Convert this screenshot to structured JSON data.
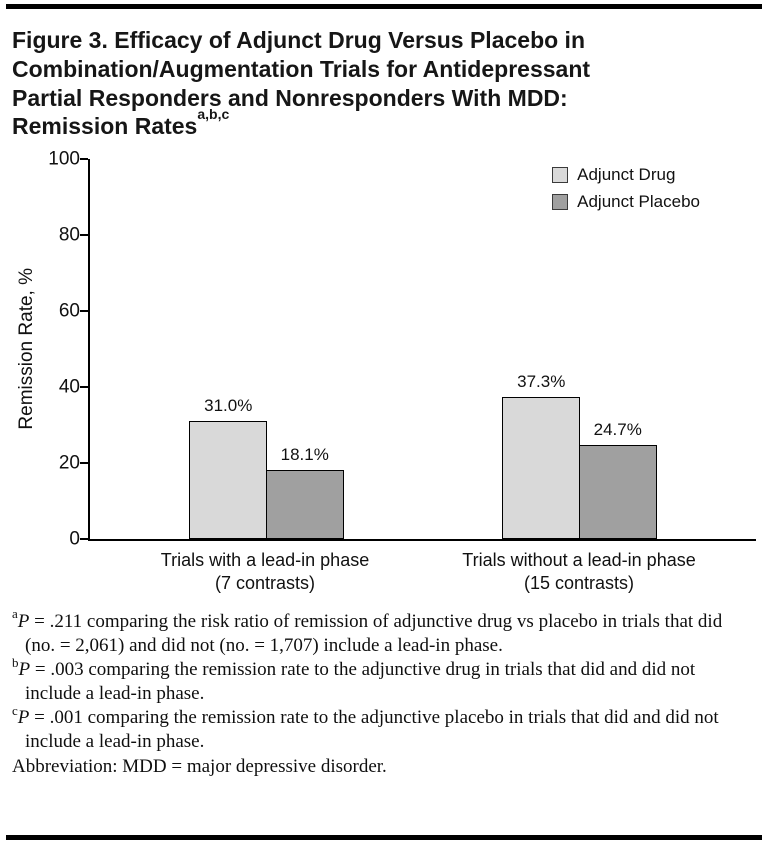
{
  "figure": {
    "title_main": "Figure 3. Efficacy of Adjunct Drug Versus Placebo in Combination/Augmentation Trials for Antidepressant Partial Responders and Nonresponders With MDD: Remission Rates",
    "title_superscript": "a,b,c"
  },
  "chart_data": {
    "type": "bar",
    "title": "",
    "xlabel": "",
    "ylabel": "Remission Rate, %",
    "ylim": [
      0,
      100
    ],
    "yticks": [
      0,
      20,
      40,
      60,
      80,
      100
    ],
    "grid": false,
    "legend_position": "top-right",
    "categories": [
      {
        "line1": "Trials with a lead-in phase",
        "line2": "(7 contrasts)"
      },
      {
        "line1": "Trials without a lead-in phase",
        "line2": "(15 contrasts)"
      }
    ],
    "series": [
      {
        "name": "Adjunct Drug",
        "color": "#d9d9d9",
        "values": [
          31.0,
          37.3
        ],
        "labels": [
          "31.0%",
          "37.3%"
        ]
      },
      {
        "name": "Adjunct Placebo",
        "color": "#a0a0a0",
        "values": [
          18.1,
          24.7
        ],
        "labels": [
          "18.1%",
          "24.7%"
        ]
      }
    ]
  },
  "footnotes": {
    "items": [
      {
        "marker": "a",
        "p": "P",
        "text": " = .211 comparing the risk ratio of remission of adjunctive drug vs placebo in trials that did (no. = 2,061) and did not (no. = 1,707) include a lead-in phase."
      },
      {
        "marker": "b",
        "p": "P",
        "text": " = .003 comparing the remission rate to the adjunctive drug in trials that did and did not include a lead-in phase."
      },
      {
        "marker": "c",
        "p": "P",
        "text": " = .001 comparing the remission rate to the adjunctive placebo in trials that did and did not include a lead-in phase."
      }
    ],
    "abbreviation": "Abbreviation: MDD = major depressive disorder."
  }
}
